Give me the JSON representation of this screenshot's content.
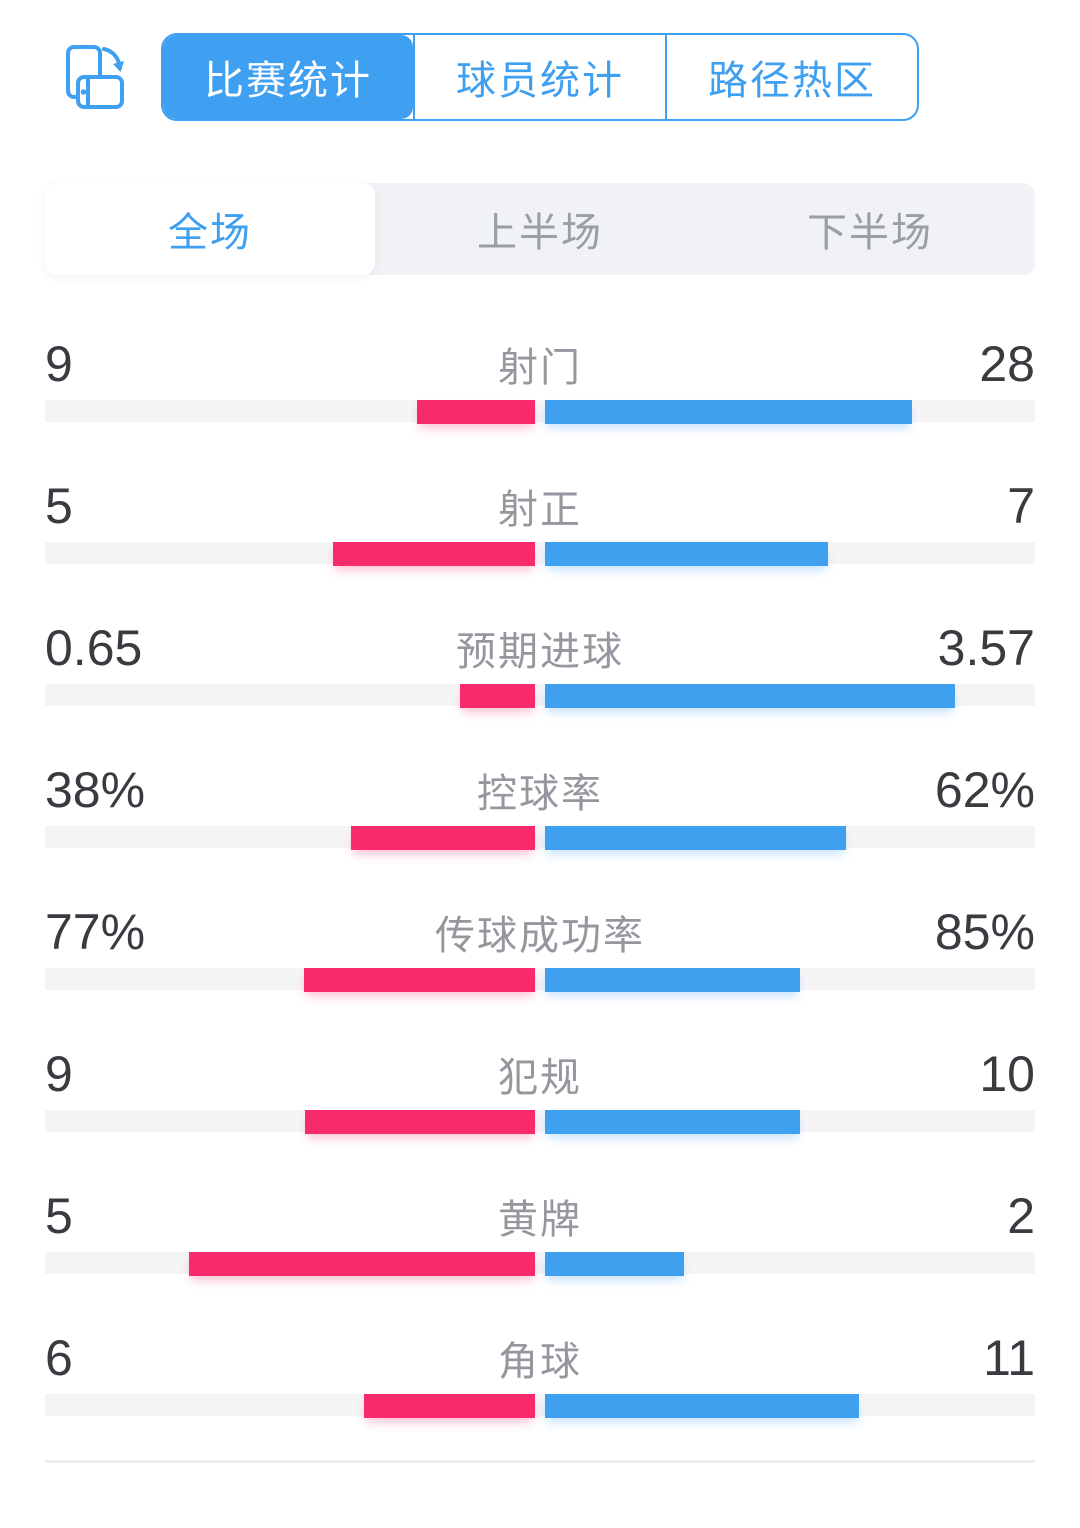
{
  "header": {
    "rotate_button": {
      "icon": "rotate-screen-icon"
    },
    "tabs": [
      {
        "label": "比赛统计",
        "active": true
      },
      {
        "label": "球员统计",
        "active": false
      },
      {
        "label": "路径热区",
        "active": false
      }
    ]
  },
  "period_tabs": [
    {
      "label": "全场",
      "active": true
    },
    {
      "label": "上半场",
      "active": false
    },
    {
      "label": "下半场",
      "active": false
    }
  ],
  "stats": [
    {
      "label": "射门",
      "home": 9,
      "away": 28,
      "home_display": "9",
      "away_display": "28"
    },
    {
      "label": "射正",
      "home": 5,
      "away": 7,
      "home_display": "5",
      "away_display": "7"
    },
    {
      "label": "预期进球",
      "home": 0.65,
      "away": 3.57,
      "home_display": "0.65",
      "away_display": "3.57"
    },
    {
      "label": "控球率",
      "home": 38,
      "away": 62,
      "home_display": "38%",
      "away_display": "62%"
    },
    {
      "label": "传球成功率",
      "home": 77,
      "away": 85,
      "home_display": "77%",
      "away_display": "85%"
    },
    {
      "label": "犯规",
      "home": 9,
      "away": 10,
      "home_display": "9",
      "away_display": "10"
    },
    {
      "label": "黄牌",
      "home": 5,
      "away": 2,
      "home_display": "5",
      "away_display": "2"
    },
    {
      "label": "角球",
      "home": 6,
      "away": 11,
      "home_display": "6",
      "away_display": "11"
    }
  ],
  "colors": {
    "accent_blue": "#3F9FF0",
    "home_pink": "#F72A6B",
    "away_blue": "#3FA0F0",
    "track_gray": "#F5F5F6",
    "label_gray": "#94979D",
    "value_dark": "#383B40",
    "segment_bg": "#F1F2F6",
    "segment_inactive_text": "#9A9EA6"
  },
  "chart_data": {
    "type": "bar",
    "orientation": "horizontal-paired",
    "categories": [
      "射门",
      "射正",
      "预期进球",
      "控球率",
      "传球成功率",
      "犯规",
      "黄牌",
      "角球"
    ],
    "series": [
      {
        "name": "home",
        "color": "#F72A6B",
        "values": [
          9,
          5,
          0.65,
          38,
          77,
          9,
          5,
          6
        ]
      },
      {
        "name": "away",
        "color": "#3FA0F0",
        "values": [
          28,
          7,
          3.57,
          62,
          85,
          10,
          2,
          11
        ]
      }
    ],
    "value_labels": {
      "home": [
        "9",
        "5",
        "0.65",
        "38%",
        "77%",
        "9",
        "5",
        "6"
      ],
      "away": [
        "28",
        "7",
        "3.57",
        "62%",
        "85%",
        "10",
        "2",
        "11"
      ]
    },
    "scaling": "each pair of bars splits a constant combined length proportionally to value/(home+away)"
  }
}
